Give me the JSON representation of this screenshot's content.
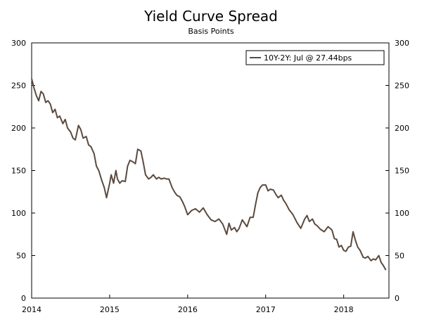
{
  "chart_data": {
    "type": "line",
    "title": "Yield Curve Spread",
    "subtitle": "Basis Points",
    "xlabel": "",
    "ylabel": "",
    "xlim": [
      2014.0,
      2018.58
    ],
    "ylim": [
      0,
      300
    ],
    "x_ticks": [
      2014,
      2015,
      2016,
      2017,
      2018
    ],
    "x_tick_labels": [
      "2014",
      "2015",
      "2016",
      "2017",
      "2018"
    ],
    "y_ticks": [
      0,
      50,
      100,
      150,
      200,
      250,
      300
    ],
    "y_tick_labels": [
      "0",
      "50",
      "100",
      "150",
      "200",
      "250",
      "300"
    ],
    "secondary_y_axis": true,
    "grid": false,
    "legend_position": "top-right",
    "colors": {
      "series": "#5b4a3f"
    },
    "series": [
      {
        "name": "10Y-2Y: Jul @ 27.44bps",
        "x": [
          2014.0,
          2014.03,
          2014.06,
          2014.09,
          2014.12,
          2014.15,
          2014.18,
          2014.21,
          2014.24,
          2014.27,
          2014.3,
          2014.33,
          2014.36,
          2014.4,
          2014.43,
          2014.46,
          2014.5,
          2014.53,
          2014.56,
          2014.6,
          2014.63,
          2014.66,
          2014.7,
          2014.73,
          2014.76,
          2014.8,
          2014.83,
          2014.86,
          2014.9,
          2014.93,
          2014.96,
          2015.0,
          2015.02,
          2015.05,
          2015.08,
          2015.1,
          2015.13,
          2015.16,
          2015.2,
          2015.23,
          2015.26,
          2015.3,
          2015.33,
          2015.36,
          2015.4,
          2015.43,
          2015.46,
          2015.5,
          2015.53,
          2015.56,
          2015.6,
          2015.63,
          2015.66,
          2015.7,
          2015.73,
          2015.76,
          2015.8,
          2015.83,
          2015.86,
          2015.9,
          2015.93,
          2015.96,
          2016.0,
          2016.05,
          2016.1,
          2016.15,
          2016.2,
          2016.25,
          2016.3,
          2016.35,
          2016.4,
          2016.45,
          2016.5,
          2016.53,
          2016.56,
          2016.6,
          2016.63,
          2016.66,
          2016.7,
          2016.73,
          2016.76,
          2016.8,
          2016.84,
          2016.87,
          2016.9,
          2016.93,
          2016.96,
          2017.0,
          2017.03,
          2017.06,
          2017.1,
          2017.13,
          2017.16,
          2017.2,
          2017.23,
          2017.26,
          2017.3,
          2017.35,
          2017.4,
          2017.45,
          2017.5,
          2017.53,
          2017.56,
          2017.6,
          2017.63,
          2017.66,
          2017.7,
          2017.75,
          2017.8,
          2017.85,
          2017.88,
          2017.91,
          2017.94,
          2017.97,
          2018.0,
          2018.03,
          2018.06,
          2018.09,
          2018.12,
          2018.15,
          2018.18,
          2018.21,
          2018.25,
          2018.28,
          2018.31,
          2018.35,
          2018.38,
          2018.41,
          2018.45,
          2018.48,
          2018.51,
          2018.54
        ],
        "values": [
          258,
          247,
          238,
          232,
          243,
          240,
          230,
          232,
          228,
          218,
          222,
          212,
          214,
          205,
          210,
          200,
          195,
          188,
          186,
          203,
          198,
          188,
          190,
          180,
          178,
          170,
          155,
          150,
          138,
          130,
          118,
          135,
          145,
          135,
          150,
          140,
          135,
          138,
          137,
          155,
          162,
          160,
          158,
          175,
          173,
          160,
          145,
          140,
          142,
          145,
          140,
          142,
          140,
          141,
          140,
          140,
          130,
          125,
          121,
          119,
          114,
          108,
          98,
          103,
          105,
          101,
          106,
          98,
          92,
          90,
          93,
          87,
          75,
          88,
          80,
          83,
          78,
          82,
          92,
          88,
          84,
          95,
          95,
          110,
          124,
          130,
          133,
          133,
          126,
          128,
          127,
          122,
          118,
          121,
          115,
          111,
          104,
          98,
          89,
          82,
          93,
          97,
          90,
          93,
          87,
          85,
          81,
          78,
          84,
          80,
          70,
          69,
          60,
          62,
          56,
          55,
          60,
          61,
          78,
          68,
          60,
          56,
          48,
          47,
          49,
          44,
          46,
          45,
          50,
          42,
          38,
          33
        ]
      }
    ]
  }
}
